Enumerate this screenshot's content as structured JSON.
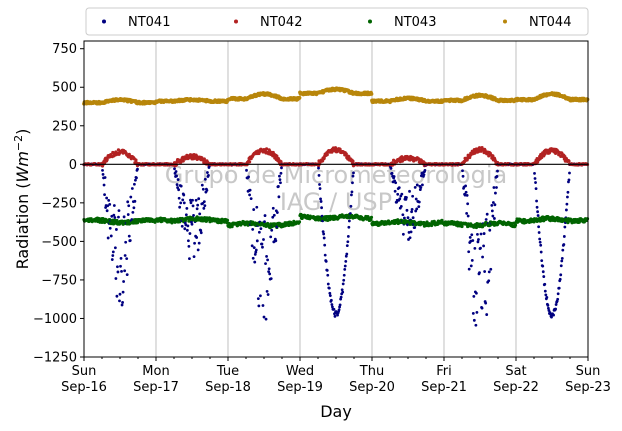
{
  "chart_data": {
    "type": "scatter",
    "xlabel": "Day",
    "ylabel_prefix": "Radiation (",
    "ylabel_unit": "Wm",
    "ylabel_exp": "−2",
    "ylabel_suffix": ")",
    "ylim": [
      -1250,
      800
    ],
    "yticks": [
      -1250,
      -1000,
      -750,
      -500,
      -250,
      0,
      250,
      500,
      750
    ],
    "ytick_labels": [
      "−1250",
      "−1000",
      "−750",
      "−500",
      "−250",
      "0",
      "250",
      "500",
      "750"
    ],
    "xlim": [
      "2018-09-16",
      "2018-09-23"
    ],
    "xticks": [
      {
        "day": "Sun",
        "date": "Sep-16"
      },
      {
        "day": "Mon",
        "date": "Sep-17"
      },
      {
        "day": "Tue",
        "date": "Sep-18"
      },
      {
        "day": "Wed",
        "date": "Sep-19"
      },
      {
        "day": "Thu",
        "date": "Sep-20"
      },
      {
        "day": "Fri",
        "date": "Sep-21"
      },
      {
        "day": "Sat",
        "date": "Sep-22"
      },
      {
        "day": "Sun",
        "date": "Sep-23"
      }
    ],
    "grid": "vertical",
    "legend_position": "top",
    "zero_line": true,
    "watermark": [
      "Grupo de Micrometeorologia",
      "IAG / USP"
    ],
    "series": [
      {
        "name": "NT041",
        "color": "#000080",
        "daily_min": [
          -850,
          -600,
          -950,
          -970,
          -450,
          -1080,
          -980
        ],
        "base": 0
      },
      {
        "name": "NT042",
        "color": "#b22222",
        "daily_max": [
          80,
          50,
          90,
          95,
          40,
          95,
          90
        ],
        "base": 0
      },
      {
        "name": "NT043",
        "color": "#006400",
        "level": [
          -370,
          -360,
          -390,
          -345,
          -380,
          -390,
          -360
        ]
      },
      {
        "name": "NT044",
        "color": "#b8860b",
        "level": [
          400,
          410,
          425,
          460,
          410,
          415,
          420
        ],
        "peaks": [
          420,
          420,
          460,
          490,
          430,
          450,
          460
        ]
      }
    ]
  }
}
